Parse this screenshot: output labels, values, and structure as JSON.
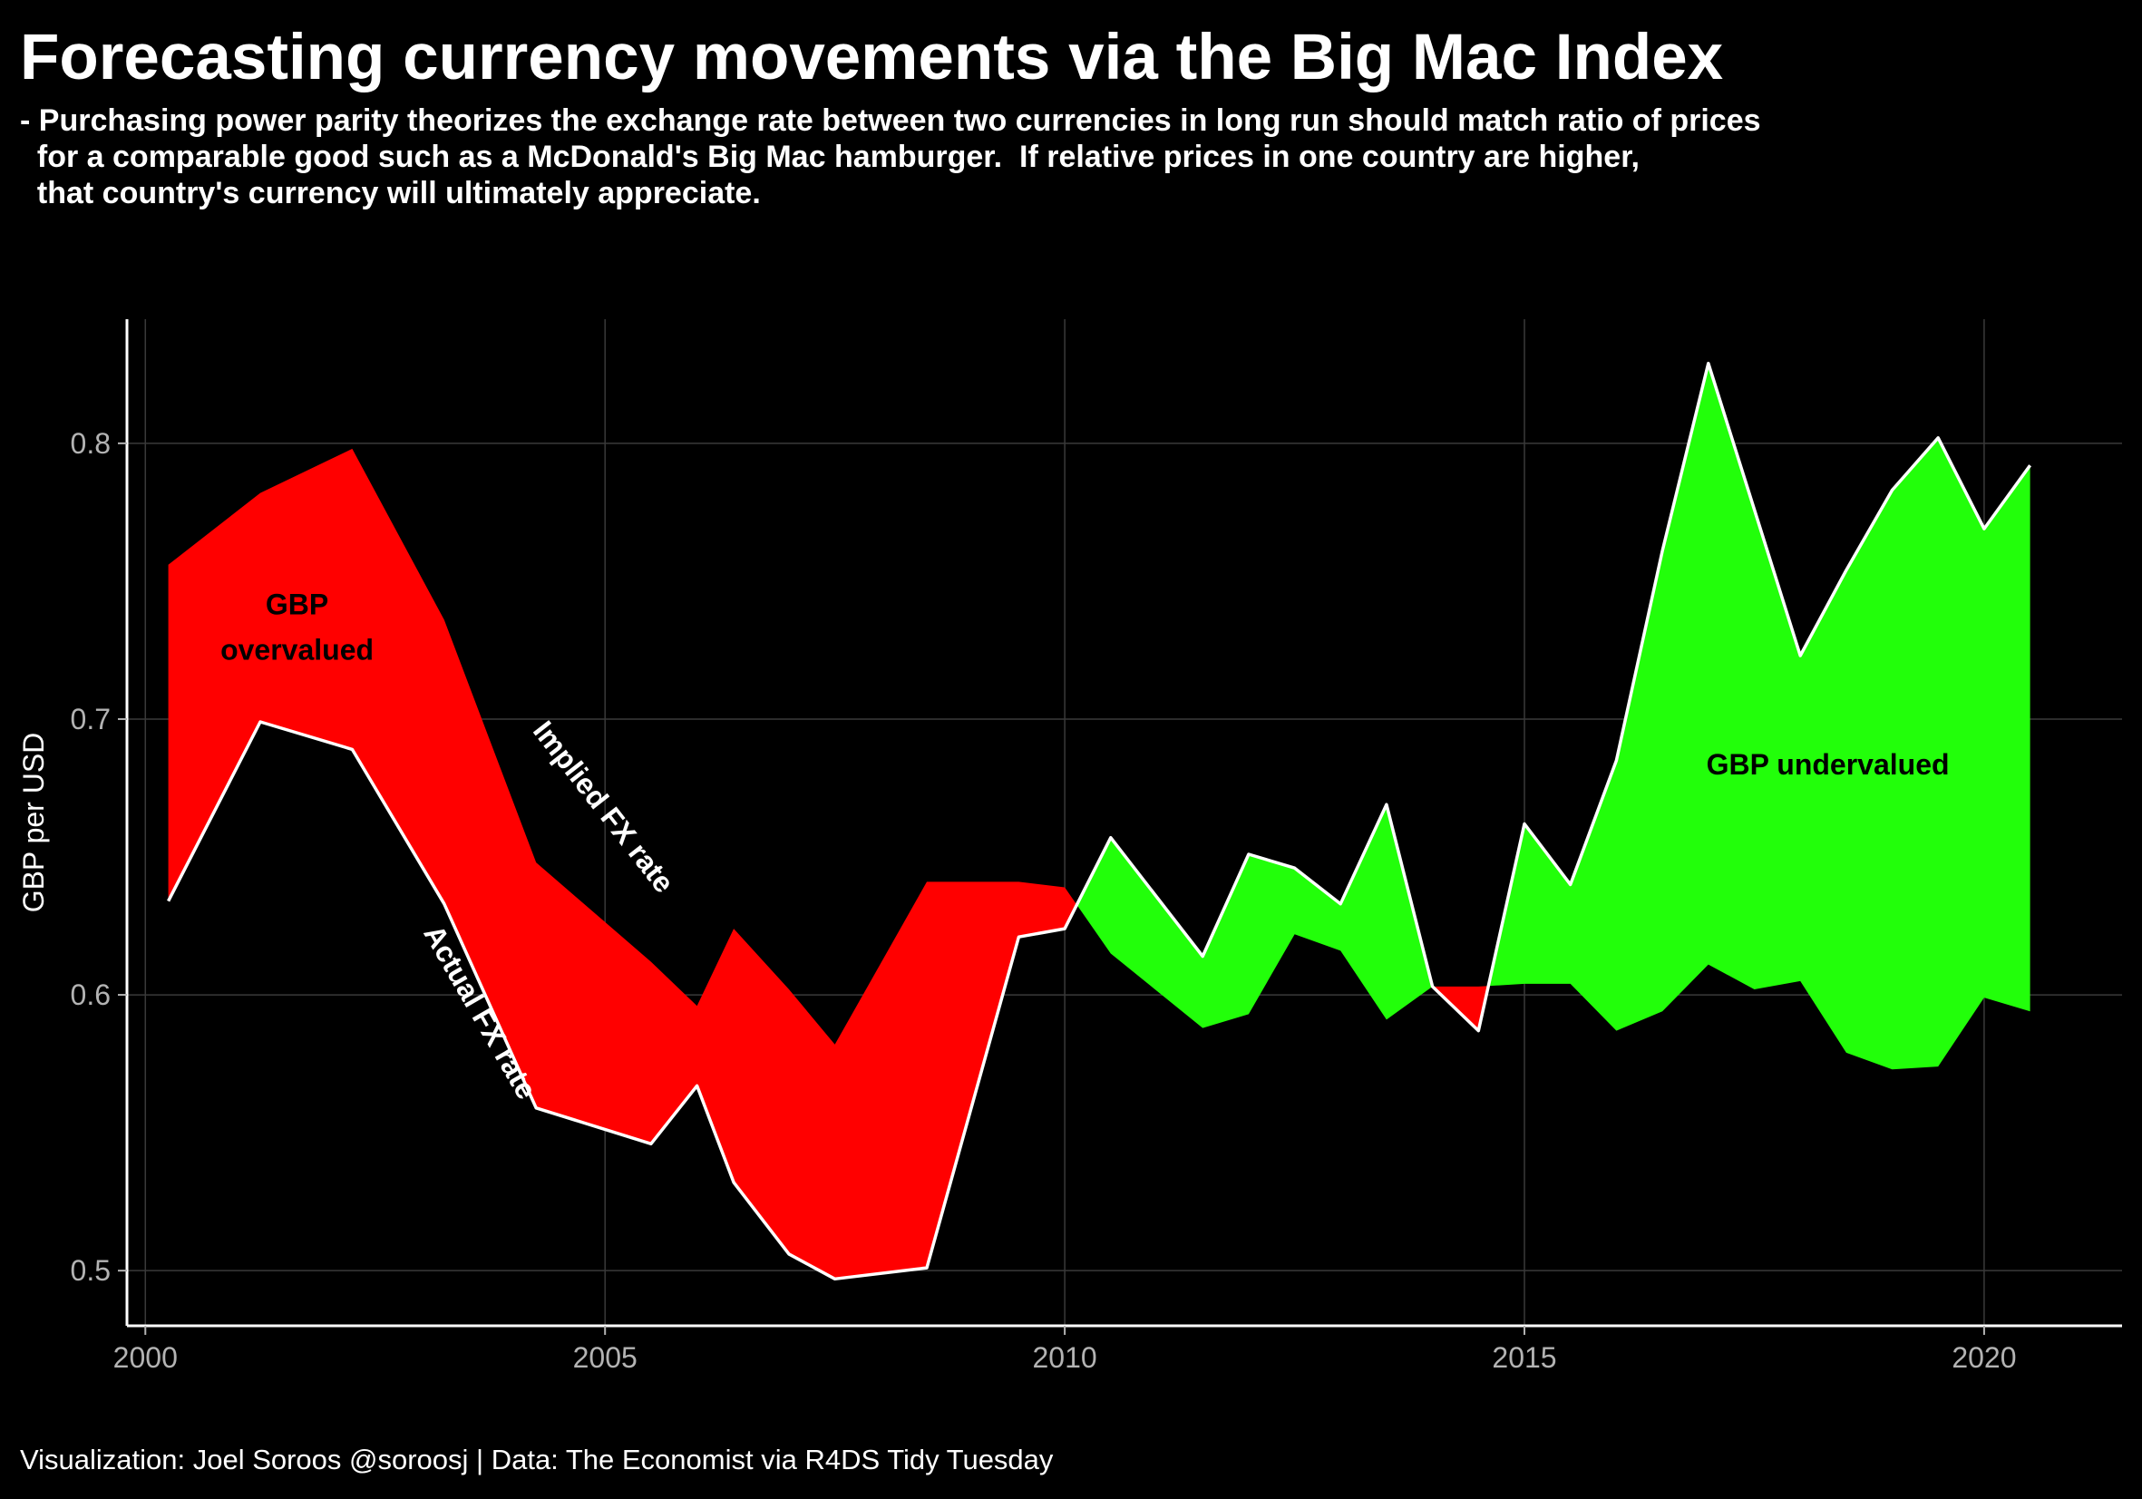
{
  "title": "Forecasting currency movements via the Big Mac Index",
  "subtitle": "- Purchasing power parity theorizes the exchange rate between two currencies in long run should match ratio of prices\n  for a comparable good such as a McDonald's Big Mac hamburger.  If relative prices in one country are higher,\n  that country's currency will ultimately appreciate.",
  "caption": "Visualization: Joel Soroos @soroosj  |  Data: The Economist via R4DS Tidy Tuesday",
  "colors": {
    "background": "#000000",
    "overvalued": "#ff0000",
    "undervalued": "#22ff0a",
    "line": "#ffffff",
    "grid": "#3a3a3a",
    "tick": "#b3b3b3",
    "overvalued_text": "#000000",
    "undervalued_text": "#000000"
  },
  "chart_data": {
    "type": "area",
    "ylabel": "GBP per USD",
    "xlabel": "",
    "xlim": [
      1999.8,
      2021.5
    ],
    "ylim": [
      0.48,
      0.845
    ],
    "x_ticks": [
      2000,
      2005,
      2010,
      2015,
      2020
    ],
    "x_tick_labels": [
      "2000",
      "2005",
      "2010",
      "2015",
      "2020"
    ],
    "y_ticks": [
      0.5,
      0.6,
      0.7,
      0.8
    ],
    "y_tick_labels": [
      "0.5",
      "0.6",
      "0.7",
      "0.8"
    ],
    "grid": true,
    "legend": "none",
    "x": [
      2000.25,
      2001.25,
      2002.25,
      2003.25,
      2004.25,
      2005.5,
      2006.0,
      2006.4,
      2007.0,
      2007.5,
      2008.5,
      2009.5,
      2010.0,
      2010.5,
      2011.5,
      2012.0,
      2012.5,
      2013.0,
      2013.5,
      2014.0,
      2014.5,
      2015.0,
      2015.5,
      2016.0,
      2016.5,
      2017.0,
      2017.5,
      2018.0,
      2018.5,
      2019.0,
      2019.5,
      2020.0,
      2020.5
    ],
    "series": [
      {
        "name": "Implied FX rate",
        "values": [
          0.756,
          0.782,
          0.798,
          0.736,
          0.648,
          0.612,
          0.596,
          0.624,
          0.602,
          0.582,
          0.641,
          0.641,
          0.639,
          0.615,
          0.588,
          0.593,
          0.622,
          0.616,
          0.591,
          0.603,
          0.603,
          0.604,
          0.604,
          0.587,
          0.594,
          0.611,
          0.602,
          0.605,
          0.579,
          0.573,
          0.574,
          0.599,
          0.594
        ]
      },
      {
        "name": "Actual FX rate",
        "values": [
          0.634,
          0.699,
          0.689,
          0.633,
          0.559,
          0.546,
          0.567,
          0.532,
          0.506,
          0.497,
          0.501,
          0.621,
          0.624,
          0.657,
          0.614,
          0.651,
          0.646,
          0.633,
          0.669,
          0.603,
          0.587,
          0.662,
          0.64,
          0.685,
          0.761,
          0.829,
          0.776,
          0.723,
          0.754,
          0.783,
          0.802,
          0.769,
          0.792
        ]
      }
    ],
    "annotations": [
      {
        "text": "GBP\novervalued",
        "x": 2001.65,
        "y": 0.738
      },
      {
        "text": "GBP undervalued",
        "x": 2018.3,
        "y": 0.68
      },
      {
        "text": "Implied FX rate",
        "x": 2004.9,
        "y": 0.666,
        "angle": 52
      },
      {
        "text": "Actual FX rate",
        "x": 2003.55,
        "y": 0.592,
        "angle": 60
      }
    ]
  }
}
